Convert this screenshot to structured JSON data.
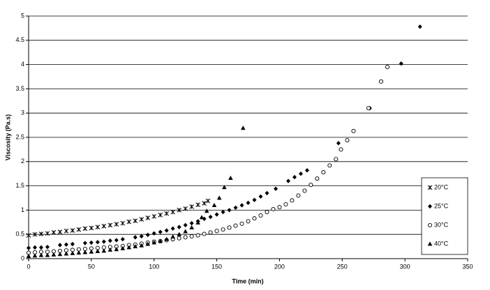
{
  "chart_data": {
    "type": "scatter",
    "xlabel": "Time (min)",
    "ylabel": "Viscosity (Pa.s)",
    "xlim": [
      0,
      350
    ],
    "xticks": [
      0,
      50,
      100,
      150,
      200,
      250,
      300,
      350
    ],
    "ylim": [
      0,
      5
    ],
    "yticks": [
      0,
      0.5,
      1,
      1.5,
      2,
      2.5,
      3,
      3.5,
      4,
      4.5,
      5
    ],
    "grid": true,
    "legend": "right",
    "series": [
      {
        "name": "20°C",
        "color": "#000000",
        "marker": "x",
        "x": [
          0,
          5,
          10,
          15,
          20,
          25,
          30,
          35,
          40,
          45,
          50,
          55,
          60,
          65,
          70,
          75,
          80,
          85,
          90,
          95,
          100,
          105,
          110,
          115,
          120,
          125,
          130,
          135,
          140,
          143
        ],
        "values": [
          0.48,
          0.5,
          0.51,
          0.52,
          0.54,
          0.55,
          0.57,
          0.58,
          0.6,
          0.62,
          0.63,
          0.65,
          0.67,
          0.69,
          0.71,
          0.73,
          0.76,
          0.78,
          0.81,
          0.84,
          0.87,
          0.9,
          0.93,
          0.96,
          1.0,
          1.03,
          1.07,
          1.11,
          1.14,
          1.19
        ]
      },
      {
        "name": "25°C",
        "color": "#000000",
        "marker": "diamond",
        "x": [
          0,
          5,
          10,
          15,
          25,
          30,
          35,
          45,
          50,
          55,
          60,
          65,
          70,
          75,
          85,
          90,
          95,
          100,
          105,
          110,
          115,
          120,
          125,
          130,
          135,
          140,
          145,
          150,
          155,
          160,
          165,
          170,
          175,
          180,
          185,
          190,
          197,
          207,
          212,
          217,
          222,
          247,
          272,
          297,
          312
        ],
        "values": [
          0.22,
          0.23,
          0.23,
          0.24,
          0.28,
          0.29,
          0.3,
          0.32,
          0.33,
          0.34,
          0.35,
          0.37,
          0.38,
          0.4,
          0.44,
          0.46,
          0.49,
          0.52,
          0.55,
          0.58,
          0.62,
          0.65,
          0.69,
          0.73,
          0.77,
          0.82,
          0.86,
          0.91,
          0.96,
          1.0,
          1.05,
          1.1,
          1.15,
          1.21,
          1.28,
          1.35,
          1.44,
          1.6,
          1.68,
          1.75,
          1.82,
          2.38,
          3.1,
          4.02,
          4.78
        ]
      },
      {
        "name": "30°C",
        "color": "#000000",
        "marker": "circle",
        "x": [
          0,
          5,
          10,
          15,
          20,
          25,
          30,
          35,
          40,
          45,
          50,
          55,
          60,
          65,
          70,
          75,
          80,
          85,
          90,
          95,
          100,
          105,
          110,
          115,
          120,
          125,
          130,
          135,
          140,
          145,
          150,
          155,
          160,
          165,
          170,
          175,
          180,
          185,
          190,
          195,
          200,
          205,
          210,
          215,
          220,
          225,
          230,
          235,
          240,
          245,
          249,
          254,
          259,
          271,
          281,
          286
        ],
        "values": [
          0.12,
          0.13,
          0.14,
          0.14,
          0.15,
          0.16,
          0.17,
          0.18,
          0.19,
          0.2,
          0.21,
          0.22,
          0.23,
          0.24,
          0.25,
          0.26,
          0.28,
          0.29,
          0.31,
          0.33,
          0.35,
          0.36,
          0.38,
          0.4,
          0.42,
          0.44,
          0.46,
          0.48,
          0.51,
          0.54,
          0.57,
          0.6,
          0.64,
          0.68,
          0.72,
          0.77,
          0.83,
          0.89,
          0.96,
          1.02,
          1.06,
          1.12,
          1.2,
          1.3,
          1.4,
          1.52,
          1.65,
          1.78,
          1.92,
          2.05,
          2.25,
          2.44,
          2.63,
          3.1,
          3.65,
          3.95
        ]
      },
      {
        "name": "40°C",
        "color": "#000000",
        "marker": "triangle",
        "x": [
          0,
          5,
          10,
          15,
          20,
          25,
          30,
          35,
          40,
          45,
          50,
          55,
          60,
          65,
          70,
          75,
          80,
          85,
          90,
          95,
          100,
          105,
          110,
          115,
          120,
          125,
          130,
          135,
          138,
          142,
          148,
          152,
          156,
          161,
          171
        ],
        "values": [
          0.05,
          0.06,
          0.07,
          0.07,
          0.08,
          0.09,
          0.1,
          0.11,
          0.12,
          0.13,
          0.14,
          0.15,
          0.16,
          0.18,
          0.19,
          0.21,
          0.23,
          0.25,
          0.27,
          0.3,
          0.33,
          0.36,
          0.4,
          0.45,
          0.5,
          0.56,
          0.64,
          0.74,
          0.85,
          0.98,
          1.1,
          1.25,
          1.47,
          1.66,
          2.69
        ]
      }
    ]
  }
}
